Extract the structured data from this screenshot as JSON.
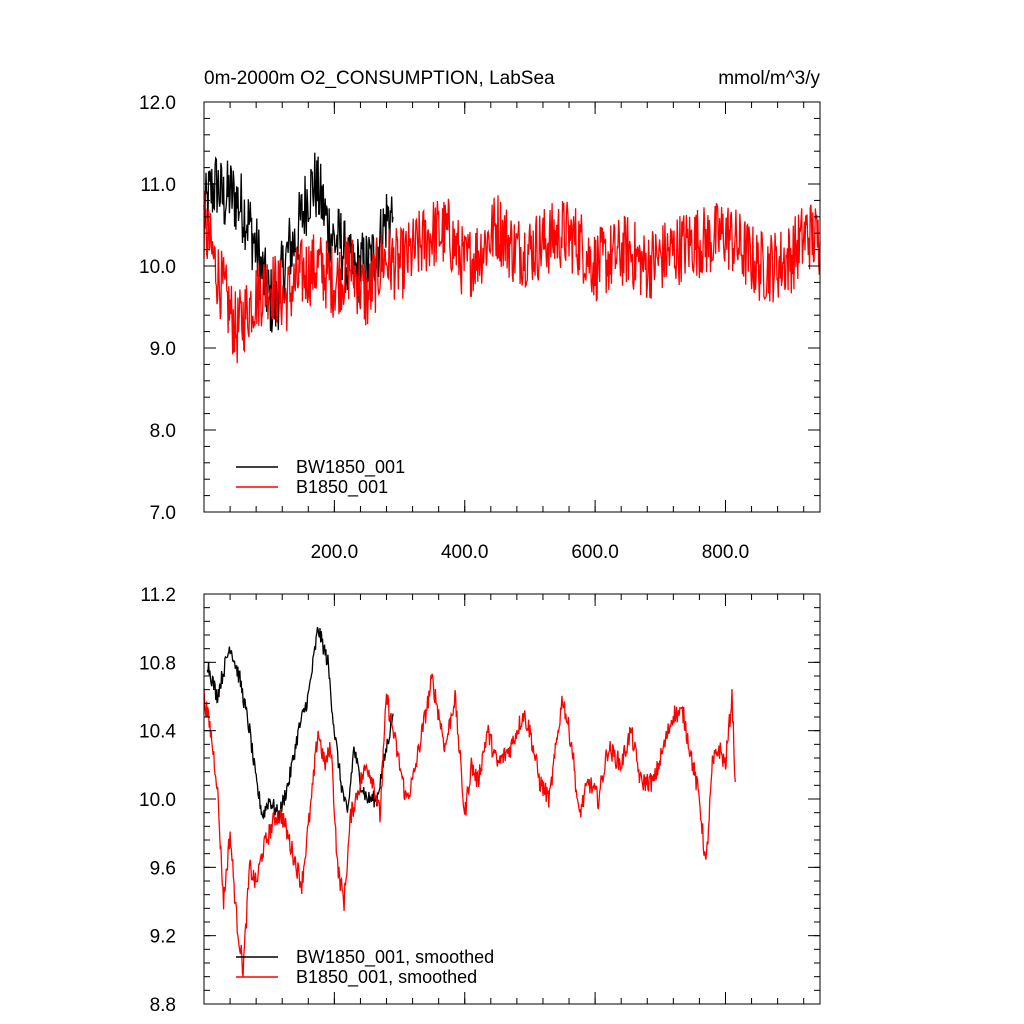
{
  "chart_data": [
    {
      "type": "line",
      "title": "0m-2000m O2_CONSUMPTION, LabSea",
      "units": "mmol/m^3/y",
      "xlim": [
        0,
        945
      ],
      "ylim": [
        7.0,
        12.0
      ],
      "xticks": [
        200,
        400,
        600,
        800
      ],
      "xtick_labels": [
        "200.0",
        "400.0",
        "600.0",
        "800.0"
      ],
      "yticks": [
        7.0,
        8.0,
        9.0,
        10.0,
        11.0,
        12.0
      ],
      "ytick_labels": [
        "7.0",
        "8.0",
        "9.0",
        "10.0",
        "11.0",
        "12.0"
      ],
      "legend_position": "bottom-left",
      "grid": false,
      "series": [
        {
          "name": "BW1850_001",
          "color": "#000000",
          "x": [
            0,
            10,
            20,
            30,
            40,
            50,
            60,
            70,
            80,
            90,
            100,
            110,
            120,
            130,
            140,
            150,
            160,
            170,
            180,
            190,
            200,
            210,
            220,
            230,
            240,
            250,
            260,
            270,
            280,
            290
          ],
          "values": [
            10.6,
            10.9,
            11.0,
            10.8,
            10.9,
            10.8,
            10.7,
            10.5,
            10.2,
            9.9,
            9.6,
            9.5,
            9.9,
            10.2,
            10.3,
            10.6,
            10.9,
            11.0,
            10.8,
            10.5,
            10.3,
            10.3,
            10.0,
            9.9,
            10.0,
            10.0,
            10.1,
            10.3,
            10.6,
            10.6
          ]
        },
        {
          "name": "B1850_001",
          "color": "#ff0000",
          "x": [
            0,
            25,
            50,
            75,
            100,
            125,
            150,
            175,
            200,
            225,
            250,
            275,
            300,
            325,
            350,
            375,
            400,
            425,
            450,
            475,
            500,
            525,
            550,
            575,
            600,
            625,
            650,
            675,
            700,
            725,
            750,
            775,
            800,
            825,
            850,
            875,
            900,
            925,
            945
          ],
          "values": [
            10.5,
            9.8,
            9.2,
            9.6,
            9.8,
            9.6,
            9.9,
            10.0,
            9.8,
            10.0,
            9.6,
            10.1,
            10.0,
            10.2,
            10.4,
            10.4,
            10.0,
            10.2,
            10.5,
            10.2,
            10.2,
            10.3,
            10.4,
            10.3,
            10.0,
            10.1,
            10.2,
            10.0,
            10.1,
            10.2,
            10.3,
            10.3,
            10.4,
            10.2,
            10.0,
            10.0,
            10.1,
            10.4,
            10.3
          ]
        }
      ]
    },
    {
      "type": "line",
      "title": "",
      "xlim": [
        0,
        945
      ],
      "ylim": [
        8.8,
        11.2
      ],
      "xticks": [
        200,
        400,
        600,
        800
      ],
      "xtick_labels": [],
      "yticks": [
        8.8,
        9.2,
        9.6,
        10.0,
        10.4,
        10.8,
        11.2
      ],
      "ytick_labels": [
        "8.8",
        "9.2",
        "9.6",
        "10.0",
        "10.4",
        "10.8",
        "11.2"
      ],
      "legend_position": "bottom-left",
      "grid": false,
      "series": [
        {
          "name": "BW1850_001, smoothed",
          "color": "#000000",
          "x": [
            5,
            20,
            40,
            55,
            70,
            80,
            90,
            100,
            115,
            130,
            145,
            160,
            175,
            190,
            200,
            210,
            220,
            230,
            240,
            250,
            265,
            280,
            290
          ],
          "values": [
            10.8,
            10.6,
            10.9,
            10.7,
            10.4,
            10.1,
            9.9,
            10.0,
            9.9,
            10.1,
            10.4,
            10.6,
            11.0,
            10.8,
            10.4,
            10.1,
            9.9,
            10.3,
            10.1,
            10.0,
            10.0,
            10.3,
            10.5
          ],
          "noise": 0.05
        },
        {
          "name": "B1850_001, smoothed",
          "color": "#ff0000",
          "x": [
            0,
            10,
            20,
            30,
            40,
            50,
            60,
            70,
            80,
            90,
            100,
            110,
            120,
            135,
            150,
            165,
            175,
            185,
            195,
            205,
            215,
            225,
            240,
            250,
            260,
            270,
            280,
            290,
            300,
            310,
            320,
            335,
            350,
            370,
            385,
            400,
            410,
            420,
            435,
            450,
            470,
            490,
            500,
            515,
            530,
            550,
            565,
            575,
            590,
            605,
            620,
            640,
            655,
            670,
            690,
            705,
            720,
            735,
            750,
            760,
            770,
            780,
            790,
            800,
            810,
            815
          ],
          "values": [
            10.6,
            10.4,
            10.1,
            9.4,
            9.8,
            9.3,
            9.0,
            9.6,
            9.5,
            9.7,
            9.8,
            9.9,
            9.9,
            9.7,
            9.5,
            10.0,
            10.4,
            10.2,
            10.3,
            9.6,
            9.4,
            9.9,
            10.1,
            10.2,
            10.1,
            9.9,
            10.6,
            10.4,
            10.2,
            10.0,
            10.1,
            10.4,
            10.7,
            10.3,
            10.6,
            9.9,
            10.2,
            10.1,
            10.4,
            10.2,
            10.3,
            10.5,
            10.4,
            10.1,
            10.0,
            10.6,
            10.3,
            9.9,
            10.1,
            10.0,
            10.3,
            10.2,
            10.4,
            10.1,
            10.1,
            10.3,
            10.5,
            10.5,
            10.2,
            10.0,
            9.6,
            10.2,
            10.3,
            10.2,
            10.6,
            10.1
          ],
          "noise": 0.06
        }
      ]
    }
  ]
}
